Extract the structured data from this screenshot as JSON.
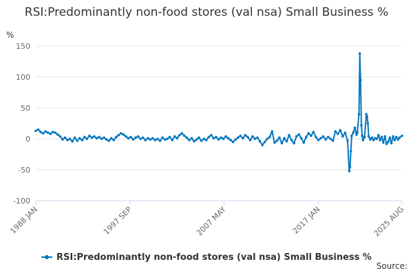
{
  "title": "RSI:Predominantly non-food stores (val nsa) Small Business %",
  "source": "Source:",
  "chart_data": {
    "type": "line",
    "title": "RSI:Predominantly non-food stores (val nsa) Small Business %",
    "ylabel": "%",
    "xlabel": "",
    "ylim": [
      -100,
      150
    ],
    "yticks": [
      -100,
      -50,
      0,
      50,
      100,
      150
    ],
    "xlim": [
      "1988-01",
      "2025-08"
    ],
    "xticks": [
      "1988 JAN",
      "1997 SEP",
      "2007 MAY",
      "2017 JAN",
      "2025 AUG"
    ],
    "grid": true,
    "legend": "bottom",
    "color": "#0076bf",
    "series": [
      {
        "name": "RSI:Predominantly non-food stores (val nsa) Small Business %",
        "points": [
          [
            "1988-01",
            13
          ],
          [
            "1988-04",
            15
          ],
          [
            "1988-07",
            11
          ],
          [
            "1988-10",
            9
          ],
          [
            "1989-01",
            12
          ],
          [
            "1989-04",
            10
          ],
          [
            "1989-07",
            8
          ],
          [
            "1989-10",
            11
          ],
          [
            "1990-01",
            10
          ],
          [
            "1990-04",
            7
          ],
          [
            "1990-07",
            4
          ],
          [
            "1990-10",
            -1
          ],
          [
            "1991-01",
            2
          ],
          [
            "1991-04",
            -2
          ],
          [
            "1991-07",
            0
          ],
          [
            "1991-10",
            -4
          ],
          [
            "1992-01",
            2
          ],
          [
            "1992-04",
            -3
          ],
          [
            "1992-07",
            1
          ],
          [
            "1992-10",
            -2
          ],
          [
            "1993-01",
            3
          ],
          [
            "1993-04",
            0
          ],
          [
            "1993-07",
            5
          ],
          [
            "1993-10",
            2
          ],
          [
            "1994-01",
            4
          ],
          [
            "1994-04",
            1
          ],
          [
            "1994-07",
            3
          ],
          [
            "1994-10",
            0
          ],
          [
            "1995-01",
            2
          ],
          [
            "1995-04",
            -1
          ],
          [
            "1995-07",
            -3
          ],
          [
            "1995-10",
            1
          ],
          [
            "1996-01",
            -2
          ],
          [
            "1996-04",
            3
          ],
          [
            "1996-07",
            6
          ],
          [
            "1996-10",
            9
          ],
          [
            "1997-01",
            7
          ],
          [
            "1997-04",
            4
          ],
          [
            "1997-07",
            1
          ],
          [
            "1997-10",
            3
          ],
          [
            "1998-01",
            -1
          ],
          [
            "1998-04",
            2
          ],
          [
            "1998-07",
            4
          ],
          [
            "1998-10",
            0
          ],
          [
            "1999-01",
            2
          ],
          [
            "1999-04",
            -2
          ],
          [
            "1999-07",
            1
          ],
          [
            "1999-10",
            -1
          ],
          [
            "2000-01",
            1
          ],
          [
            "2000-04",
            -2
          ],
          [
            "2000-07",
            0
          ],
          [
            "2000-10",
            -3
          ],
          [
            "2001-01",
            2
          ],
          [
            "2001-04",
            -1
          ],
          [
            "2001-07",
            0
          ],
          [
            "2001-10",
            3
          ],
          [
            "2002-01",
            -2
          ],
          [
            "2002-04",
            4
          ],
          [
            "2002-07",
            1
          ],
          [
            "2002-10",
            6
          ],
          [
            "2003-01",
            9
          ],
          [
            "2003-04",
            5
          ],
          [
            "2003-07",
            2
          ],
          [
            "2003-10",
            -2
          ],
          [
            "2004-01",
            1
          ],
          [
            "2004-04",
            -4
          ],
          [
            "2004-07",
            -1
          ],
          [
            "2004-10",
            2
          ],
          [
            "2005-01",
            -3
          ],
          [
            "2005-04",
            0
          ],
          [
            "2005-07",
            -2
          ],
          [
            "2005-10",
            3
          ],
          [
            "2006-01",
            6
          ],
          [
            "2006-04",
            1
          ],
          [
            "2006-07",
            3
          ],
          [
            "2006-10",
            -1
          ],
          [
            "2007-01",
            2
          ],
          [
            "2007-04",
            0
          ],
          [
            "2007-07",
            4
          ],
          [
            "2007-10",
            1
          ],
          [
            "2008-01",
            -2
          ],
          [
            "2008-04",
            -5
          ],
          [
            "2008-07",
            -1
          ],
          [
            "2008-10",
            2
          ],
          [
            "2009-01",
            5
          ],
          [
            "2009-04",
            1
          ],
          [
            "2009-07",
            6
          ],
          [
            "2009-10",
            3
          ],
          [
            "2010-01",
            -2
          ],
          [
            "2010-04",
            4
          ],
          [
            "2010-07",
            0
          ],
          [
            "2010-10",
            2
          ],
          [
            "2011-01",
            -4
          ],
          [
            "2011-04",
            -10
          ],
          [
            "2011-07",
            -5
          ],
          [
            "2011-10",
            0
          ],
          [
            "2012-01",
            3
          ],
          [
            "2012-04",
            12
          ],
          [
            "2012-07",
            -6
          ],
          [
            "2012-10",
            -3
          ],
          [
            "2013-01",
            2
          ],
          [
            "2013-04",
            -7
          ],
          [
            "2013-07",
            1
          ],
          [
            "2013-10",
            -4
          ],
          [
            "2014-01",
            6
          ],
          [
            "2014-04",
            -2
          ],
          [
            "2014-07",
            -7
          ],
          [
            "2014-10",
            4
          ],
          [
            "2015-01",
            7
          ],
          [
            "2015-04",
            1
          ],
          [
            "2015-07",
            -6
          ],
          [
            "2015-10",
            3
          ],
          [
            "2016-01",
            9
          ],
          [
            "2016-04",
            5
          ],
          [
            "2016-07",
            11
          ],
          [
            "2016-10",
            3
          ],
          [
            "2017-01",
            -2
          ],
          [
            "2017-04",
            1
          ],
          [
            "2017-07",
            4
          ],
          [
            "2017-10",
            -1
          ],
          [
            "2018-01",
            3
          ],
          [
            "2018-04",
            0
          ],
          [
            "2018-07",
            -3
          ],
          [
            "2018-10",
            12
          ],
          [
            "2019-01",
            8
          ],
          [
            "2019-04",
            14
          ],
          [
            "2019-07",
            4
          ],
          [
            "2019-10",
            10
          ],
          [
            "2020-01",
            -3
          ],
          [
            "2020-03",
            -52
          ],
          [
            "2020-04",
            -45
          ],
          [
            "2020-05",
            -20
          ],
          [
            "2020-06",
            5
          ],
          [
            "2020-08",
            10
          ],
          [
            "2020-10",
            18
          ],
          [
            "2020-12",
            7
          ],
          [
            "2021-01",
            10
          ],
          [
            "2021-03",
            40
          ],
          [
            "2021-04",
            138
          ],
          [
            "2021-05",
            95
          ],
          [
            "2021-06",
            22
          ],
          [
            "2021-07",
            5
          ],
          [
            "2021-08",
            -2
          ],
          [
            "2021-10",
            3
          ],
          [
            "2021-12",
            40
          ],
          [
            "2022-01",
            36
          ],
          [
            "2022-02",
            25
          ],
          [
            "2022-03",
            4
          ],
          [
            "2022-05",
            -1
          ],
          [
            "2022-07",
            2
          ],
          [
            "2022-09",
            -2
          ],
          [
            "2022-11",
            1
          ],
          [
            "2023-01",
            0
          ],
          [
            "2023-03",
            6
          ],
          [
            "2023-05",
            -2
          ],
          [
            "2023-07",
            3
          ],
          [
            "2023-09",
            -6
          ],
          [
            "2023-11",
            4
          ],
          [
            "2024-01",
            -8
          ],
          [
            "2024-03",
            -5
          ],
          [
            "2024-05",
            2
          ],
          [
            "2024-07",
            -7
          ],
          [
            "2024-09",
            4
          ],
          [
            "2024-11",
            -2
          ],
          [
            "2025-01",
            3
          ],
          [
            "2025-03",
            -1
          ],
          [
            "2025-05",
            2
          ],
          [
            "2025-08",
            5
          ]
        ]
      }
    ]
  }
}
